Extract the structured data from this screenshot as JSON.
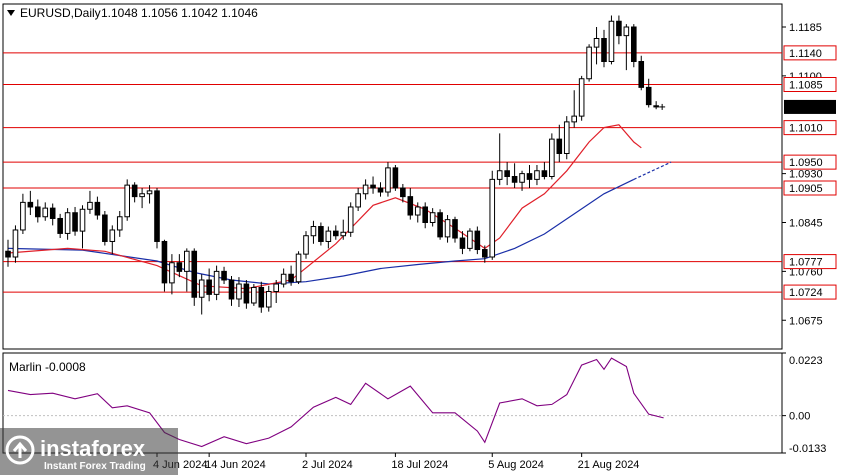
{
  "header": {
    "symbol": "EURUSD,Daily",
    "ohlc": "1.1048 1.1056 1.1042 1.1046"
  },
  "indicator": {
    "label": "Marlin -0.0008"
  },
  "logo": {
    "brand": "instaforex",
    "tagline": "Instant Forex Trading"
  },
  "colors": {
    "bull": "#ffffff",
    "bear": "#000000",
    "level_line": "#e00000",
    "ma_fast": "#e0202a",
    "ma_slow": "#1a2fa8",
    "oscillator": "#800080",
    "current_price_bg": "#000000"
  },
  "chart_data": [
    {
      "type": "candlestick",
      "title": "EURUSD,Daily",
      "ylim": [
        1.0625,
        1.1225
      ],
      "y_ticks": [
        "1.1185",
        "1.1100",
        "1.0930",
        "1.0845",
        "1.0760",
        "1.0675"
      ],
      "x_ticks": [
        {
          "label": "14 Jun 2024",
          "index": 27
        },
        {
          "label": "2 Jul 2024",
          "index": 40
        },
        {
          "label": "18 Jul 2024",
          "index": 52
        },
        {
          "label": "5 Aug 2024",
          "index": 65
        },
        {
          "label": "21 Aug 2024",
          "index": 77
        },
        {
          "label": "4 Jun 2024",
          "index": 20
        }
      ],
      "levels": [
        {
          "value": 1.114,
          "label": "1.1140"
        },
        {
          "value": 1.1085,
          "label": "1.1085"
        },
        {
          "value": 1.101,
          "label": "1.1010"
        },
        {
          "value": 1.095,
          "label": "1.0950"
        },
        {
          "value": 1.0905,
          "label": "1.0905"
        },
        {
          "value": 1.0777,
          "label": "1.0777"
        },
        {
          "value": 1.0724,
          "label": "1.0724"
        }
      ],
      "current_price": {
        "value": 1.1046,
        "label": "1.1046"
      },
      "ohlc": [
        [
          1.0795,
          1.0815,
          1.0768,
          1.0785
        ],
        [
          1.0785,
          1.084,
          1.0775,
          1.0832
        ],
        [
          1.0832,
          1.0895,
          1.0825,
          1.088
        ],
        [
          1.088,
          1.09,
          1.0858,
          1.0872
        ],
        [
          1.0872,
          1.0885,
          1.0845,
          1.0855
        ],
        [
          1.0855,
          1.088,
          1.0848,
          1.087
        ],
        [
          1.087,
          1.0878,
          1.084,
          1.0852
        ],
        [
          1.0852,
          1.086,
          1.0818,
          1.0826
        ],
        [
          1.0826,
          1.087,
          1.0815,
          1.0862
        ],
        [
          1.0862,
          1.0872,
          1.0822,
          1.083
        ],
        [
          1.083,
          1.0875,
          1.08,
          1.0868
        ],
        [
          1.0868,
          1.09,
          1.086,
          1.088
        ],
        [
          1.088,
          1.089,
          1.085,
          1.0858
        ],
        [
          1.0858,
          1.0865,
          1.0805,
          1.0812
        ],
        [
          1.0812,
          1.084,
          1.079,
          1.0832
        ],
        [
          1.0832,
          1.0865,
          1.082,
          1.0855
        ],
        [
          1.0855,
          1.092,
          1.0848,
          1.091
        ],
        [
          1.091,
          1.0915,
          1.088,
          1.089
        ],
        [
          1.089,
          1.0905,
          1.087,
          1.0895
        ],
        [
          1.0895,
          1.091,
          1.0878,
          1.09
        ],
        [
          1.09,
          1.0905,
          1.08,
          1.0812
        ],
        [
          1.0812,
          1.0815,
          1.0725,
          1.074
        ],
        [
          1.074,
          1.079,
          1.072,
          1.0775
        ],
        [
          1.0775,
          1.079,
          1.075,
          1.076
        ],
        [
          1.076,
          1.08,
          1.0725,
          1.0795
        ],
        [
          1.0795,
          1.08,
          1.07,
          1.0715
        ],
        [
          1.0715,
          1.0755,
          1.0685,
          1.0745
        ],
        [
          1.0745,
          1.0765,
          1.0708,
          1.072
        ],
        [
          1.072,
          1.077,
          1.071,
          1.076
        ],
        [
          1.076,
          1.0768,
          1.0738,
          1.0745
        ],
        [
          1.0745,
          1.0752,
          1.07,
          1.0712
        ],
        [
          1.0712,
          1.075,
          1.0698,
          1.0738
        ],
        [
          1.0738,
          1.0745,
          1.0695,
          1.0705
        ],
        [
          1.0705,
          1.0738,
          1.07,
          1.0732
        ],
        [
          1.0732,
          1.0742,
          1.0688,
          1.0698
        ],
        [
          1.0698,
          1.0735,
          1.069,
          1.0725
        ],
        [
          1.0725,
          1.0745,
          1.0705,
          1.0738
        ],
        [
          1.0738,
          1.0765,
          1.0732,
          1.0755
        ],
        [
          1.0755,
          1.077,
          1.0735,
          1.0742
        ],
        [
          1.0742,
          1.0795,
          1.0738,
          1.079
        ],
        [
          1.079,
          1.083,
          1.0782,
          1.0822
        ],
        [
          1.0822,
          1.0848,
          1.0808,
          1.0838
        ],
        [
          1.0838,
          1.0845,
          1.0805,
          1.0812
        ],
        [
          1.0812,
          1.0838,
          1.08,
          1.083
        ],
        [
          1.083,
          1.084,
          1.0815,
          1.0822
        ],
        [
          1.0822,
          1.085,
          1.0815,
          1.0828
        ],
        [
          1.0828,
          1.088,
          1.082,
          1.0872
        ],
        [
          1.0872,
          1.0905,
          1.0865,
          1.0895
        ],
        [
          1.0895,
          1.092,
          1.0885,
          1.091
        ],
        [
          1.091,
          1.0925,
          1.0895,
          1.0905
        ],
        [
          1.0905,
          1.0915,
          1.089,
          1.0898
        ],
        [
          1.0898,
          1.095,
          1.089,
          1.094
        ],
        [
          1.094,
          1.0945,
          1.09,
          1.0905
        ],
        [
          1.0905,
          1.0912,
          1.088,
          1.089
        ],
        [
          1.089,
          1.0905,
          1.085,
          1.0858
        ],
        [
          1.0858,
          1.088,
          1.0845,
          1.0872
        ],
        [
          1.0872,
          1.088,
          1.0835,
          1.0845
        ],
        [
          1.0845,
          1.087,
          1.0838,
          1.0862
        ],
        [
          1.0862,
          1.0868,
          1.0815,
          1.082
        ],
        [
          1.082,
          1.0858,
          1.081,
          1.085
        ],
        [
          1.085,
          1.0855,
          1.081,
          1.0818
        ],
        [
          1.0818,
          1.083,
          1.079,
          1.08
        ],
        [
          1.08,
          1.0835,
          1.0795,
          1.083
        ],
        [
          1.083,
          1.0838,
          1.079,
          1.0798
        ],
        [
          1.0798,
          1.0805,
          1.0775,
          1.0785
        ],
        [
          1.0785,
          1.0935,
          1.078,
          1.092
        ],
        [
          1.092,
          1.1,
          1.091,
          1.0935
        ],
        [
          1.0935,
          1.095,
          1.091,
          1.0925
        ],
        [
          1.0925,
          1.0948,
          1.0905,
          1.0915
        ],
        [
          1.0915,
          1.0935,
          1.09,
          1.093
        ],
        [
          1.093,
          1.0945,
          1.0905,
          1.092
        ],
        [
          1.092,
          1.0945,
          1.091,
          1.0935
        ],
        [
          1.0935,
          1.095,
          1.092,
          1.0925
        ],
        [
          1.0925,
          1.1,
          1.092,
          1.099
        ],
        [
          1.099,
          1.1015,
          1.095,
          1.0965
        ],
        [
          1.0965,
          1.103,
          1.0955,
          1.102
        ],
        [
          1.102,
          1.1075,
          1.101,
          1.103
        ],
        [
          1.103,
          1.11,
          1.1022,
          1.1095
        ],
        [
          1.1095,
          1.1155,
          1.109,
          1.115
        ],
        [
          1.115,
          1.1185,
          1.112,
          1.1165
        ],
        [
          1.1165,
          1.118,
          1.1115,
          1.1125
        ],
        [
          1.1125,
          1.1205,
          1.112,
          1.1195
        ],
        [
          1.1195,
          1.1205,
          1.1155,
          1.117
        ],
        [
          1.117,
          1.119,
          1.111,
          1.1185
        ],
        [
          1.1185,
          1.119,
          1.1115,
          1.1125
        ],
        [
          1.1125,
          1.1135,
          1.1075,
          1.108
        ],
        [
          1.108,
          1.1095,
          1.1045,
          1.105
        ],
        [
          1.1048,
          1.1056,
          1.1042,
          1.1046
        ]
      ],
      "ma_fast": [
        [
          0,
          1.0792
        ],
        [
          8,
          1.08
        ],
        [
          13,
          1.0795
        ],
        [
          20,
          1.077
        ],
        [
          26,
          1.0735
        ],
        [
          32,
          1.073
        ],
        [
          38,
          1.0745
        ],
        [
          44,
          1.0808
        ],
        [
          49,
          1.0875
        ],
        [
          52,
          1.0888
        ],
        [
          56,
          1.0868
        ],
        [
          60,
          1.0835
        ],
        [
          64,
          1.08
        ],
        [
          66,
          1.0818
        ],
        [
          69,
          1.087
        ],
        [
          72,
          1.0895
        ],
        [
          75,
          1.0935
        ],
        [
          78,
          1.0985
        ],
        [
          80,
          1.101
        ],
        [
          82,
          1.1015
        ],
        [
          84,
          1.0985
        ],
        [
          85,
          1.0975
        ]
      ],
      "ma_slow": [
        [
          0,
          1.08
        ],
        [
          10,
          1.0797
        ],
        [
          20,
          1.0778
        ],
        [
          25,
          1.0758
        ],
        [
          30,
          1.0745
        ],
        [
          35,
          1.0738
        ],
        [
          40,
          1.0742
        ],
        [
          45,
          1.0752
        ],
        [
          50,
          1.0765
        ],
        [
          55,
          1.0772
        ],
        [
          60,
          1.0778
        ],
        [
          64,
          1.0782
        ],
        [
          68,
          1.08
        ],
        [
          72,
          1.0825
        ],
        [
          76,
          1.086
        ],
        [
          80,
          1.0895
        ],
        [
          84,
          1.092
        ]
      ],
      "ma_slow_projection": [
        [
          84,
          1.092
        ],
        [
          89,
          1.095
        ]
      ]
    },
    {
      "type": "line",
      "title": "Marlin -0.0008",
      "ylim": [
        -0.0133,
        0.0223
      ],
      "y_ticks": [
        "0.0223",
        "0.00",
        "-0.0133"
      ],
      "zero_line": 0,
      "series": [
        {
          "points": [
            [
              0,
              0.009
            ],
            [
              3,
              0.0075
            ],
            [
              6,
              0.008
            ],
            [
              9,
              0.006
            ],
            [
              12,
              0.0078
            ],
            [
              14,
              0.0028
            ],
            [
              16,
              0.0035
            ],
            [
              19,
              0.001
            ],
            [
              21,
              -0.006
            ],
            [
              23,
              -0.0085
            ],
            [
              26,
              -0.011
            ],
            [
              29,
              -0.0075
            ],
            [
              32,
              -0.01
            ],
            [
              35,
              -0.008
            ],
            [
              38,
              -0.004
            ],
            [
              41,
              0.003
            ],
            [
              44,
              0.0065
            ],
            [
              46,
              0.004
            ],
            [
              48,
              0.0115
            ],
            [
              51,
              0.006
            ],
            [
              54,
              0.0105
            ],
            [
              57,
              0.001
            ],
            [
              60,
              0.001
            ],
            [
              63,
              -0.0055
            ],
            [
              64,
              -0.0095
            ],
            [
              66,
              0.0045
            ],
            [
              69,
              0.006
            ],
            [
              71,
              0.0035
            ],
            [
              73,
              0.004
            ],
            [
              75,
              0.0075
            ],
            [
              77,
              0.018
            ],
            [
              79,
              0.02
            ],
            [
              80,
              0.0165
            ],
            [
              81,
              0.0205
            ],
            [
              83,
              0.0175
            ],
            [
              84,
              0.008
            ],
            [
              86,
              0.0005
            ],
            [
              88,
              -0.0008
            ]
          ]
        }
      ]
    }
  ]
}
